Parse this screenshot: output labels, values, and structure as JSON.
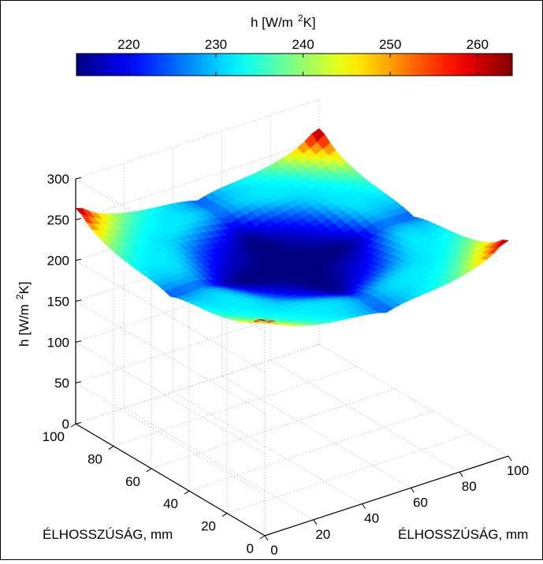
{
  "chart_data": {
    "type": "surface",
    "colorbar": {
      "label_main": "h [W/m",
      "label_sup": "2",
      "label_end": "K]",
      "min": 214,
      "max": 264,
      "ticks": [
        "220",
        "230",
        "240",
        "250",
        "260"
      ],
      "tick_values": [
        220,
        230,
        240,
        250,
        260
      ],
      "placement": "top",
      "colormap": "jet"
    },
    "zaxis": {
      "label_main": "h [W/m",
      "label_sup": "2",
      "label_end": "K]",
      "ticks": [
        "0",
        "50",
        "100",
        "150",
        "200",
        "250",
        "300"
      ],
      "tick_values": [
        0,
        50,
        100,
        150,
        200,
        250,
        300
      ],
      "zlim": [
        0,
        300
      ]
    },
    "xaxis": {
      "label": "ÉLHOSSZÚSÁG, mm",
      "ticks": [
        "0",
        "20",
        "40",
        "60",
        "80",
        "100"
      ],
      "tick_values": [
        0,
        20,
        40,
        60,
        80,
        100
      ],
      "xlim": [
        0,
        100
      ]
    },
    "yaxis": {
      "label": "ÉLHOSSZÚSÁG, mm",
      "ticks": [
        "0",
        "20",
        "40",
        "60",
        "80",
        "100"
      ],
      "tick_values": [
        0,
        20,
        40,
        60,
        80,
        100
      ],
      "ylim": [
        0,
        100
      ]
    },
    "surface_summary": {
      "center_value": 214,
      "corner_values": [
        262,
        262,
        262,
        264
      ],
      "edge_midpoint_value": 232
    },
    "grid": true
  }
}
